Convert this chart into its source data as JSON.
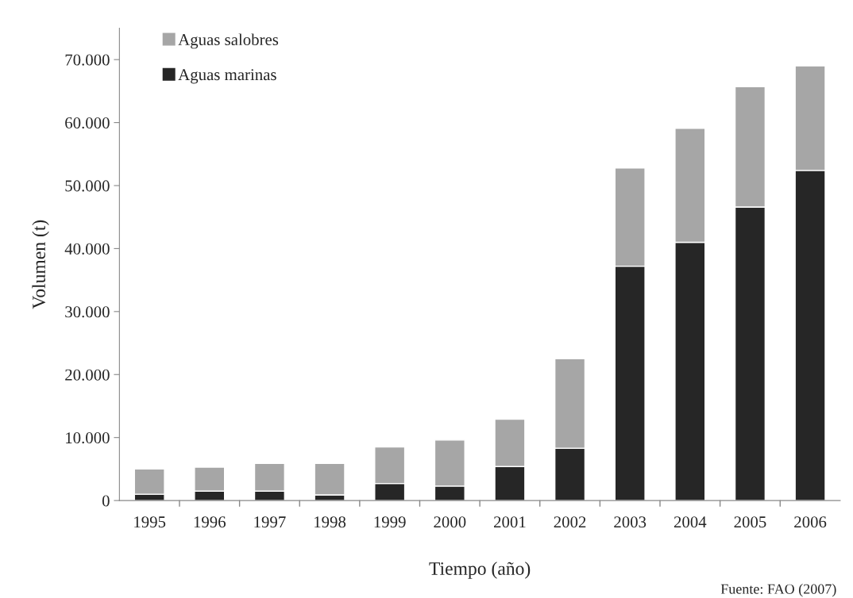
{
  "chart_data": {
    "type": "bar",
    "stacked": true,
    "xlabel": "Tiempo (año)",
    "ylabel": "Volumen (t)",
    "categories": [
      "1995",
      "1996",
      "1997",
      "1998",
      "1999",
      "2000",
      "2001",
      "2002",
      "2003",
      "2004",
      "2005",
      "2006"
    ],
    "series": [
      {
        "name": "Aguas marinas",
        "color": "#262626",
        "values": [
          1000,
          1500,
          1500,
          900,
          2700,
          2300,
          5400,
          8300,
          37200,
          41000,
          46600,
          52400
        ]
      },
      {
        "name": "Aguas salobres",
        "color": "#a6a6a6",
        "values": [
          4000,
          3800,
          4400,
          5000,
          5800,
          7300,
          7500,
          14200,
          15600,
          18100,
          19100,
          16600
        ]
      }
    ],
    "ylim": [
      0,
      75000
    ],
    "yticks": [
      {
        "value": 0,
        "label": "0"
      },
      {
        "value": 10000,
        "label": "10.000"
      },
      {
        "value": 20000,
        "label": "20.000"
      },
      {
        "value": 30000,
        "label": "30.000"
      },
      {
        "value": 40000,
        "label": "40.000"
      },
      {
        "value": 50000,
        "label": "50.000"
      },
      {
        "value": 60000,
        "label": "60.000"
      },
      {
        "value": 70000,
        "label": "70.000"
      }
    ],
    "legend": "top left",
    "grid": false,
    "annotations": [
      "Fuente: FAO (2007)"
    ]
  }
}
